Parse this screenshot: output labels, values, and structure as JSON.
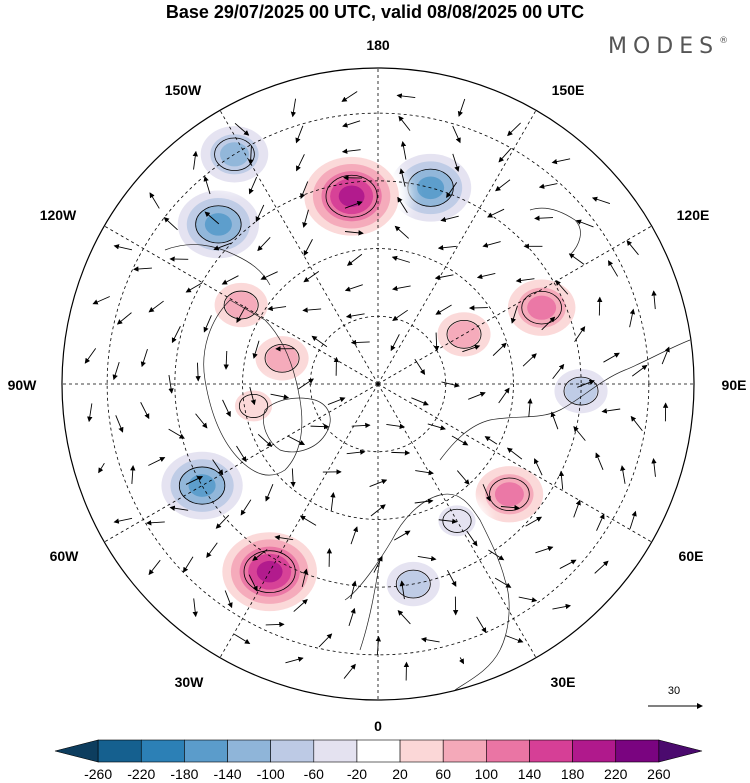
{
  "title": "Base 29/07/2025 00 UTC, valid 08/08/2025 00 UTC",
  "brand": "MODES",
  "brand_mark": "®",
  "longitude_labels": {
    "lon_180": "180",
    "lon_150e": "150E",
    "lon_120e": "120E",
    "lon_90e": "90E",
    "lon_60e": "60E",
    "lon_30e": "30E",
    "lon_0": "0",
    "lon_30w": "30W",
    "lon_60w": "60W",
    "lon_90w": "90W",
    "lon_120w": "120W",
    "lon_150w": "150W"
  },
  "vector_reference": "30",
  "colorbar": {
    "labels": [
      "-260",
      "-220",
      "-180",
      "-140",
      "-100",
      "-60",
      "-20",
      "20",
      "60",
      "100",
      "140",
      "180",
      "220",
      "260"
    ],
    "colors": [
      "#0d3d5e",
      "#15608f",
      "#2c80b6",
      "#5b9ccb",
      "#8fb5d9",
      "#bdcae5",
      "#e4e2f0",
      "#ffffff",
      "#fbd7d7",
      "#f4a9b9",
      "#ea75a4",
      "#d63f96",
      "#b0198c",
      "#7a0480",
      "#4b0a6e"
    ]
  },
  "anomaly_centers": [
    {
      "sign": "negative",
      "magnitude": 180,
      "lon": 165,
      "lat": 45
    },
    {
      "sign": "positive",
      "magnitude": 220,
      "lon": -172,
      "lat": 48
    },
    {
      "sign": "negative",
      "magnitude": 180,
      "lon": -135,
      "lat": 40
    },
    {
      "sign": "negative",
      "magnitude": 140,
      "lon": -148,
      "lat": 30
    },
    {
      "sign": "positive",
      "magnitude": 100,
      "lon": -120,
      "lat": 55
    },
    {
      "sign": "positive",
      "magnitude": 140,
      "lon": 115,
      "lat": 50
    },
    {
      "sign": "positive",
      "magnitude": 100,
      "lon": 120,
      "lat": 68
    },
    {
      "sign": "negative",
      "magnitude": 100,
      "lon": 88,
      "lat": 45
    },
    {
      "sign": "positive",
      "magnitude": 140,
      "lon": 50,
      "lat": 52
    },
    {
      "sign": "negative",
      "magnitude": 60,
      "lon": 30,
      "lat": 55
    },
    {
      "sign": "negative",
      "magnitude": 100,
      "lon": 10,
      "lat": 45
    },
    {
      "sign": "positive",
      "magnitude": 220,
      "lon": -30,
      "lat": 42
    },
    {
      "sign": "negative",
      "magnitude": 180,
      "lon": -60,
      "lat": 45
    },
    {
      "sign": "positive",
      "magnitude": 100,
      "lon": -105,
      "lat": 68
    },
    {
      "sign": "positive",
      "magnitude": 60,
      "lon": -80,
      "lat": 62
    }
  ]
}
